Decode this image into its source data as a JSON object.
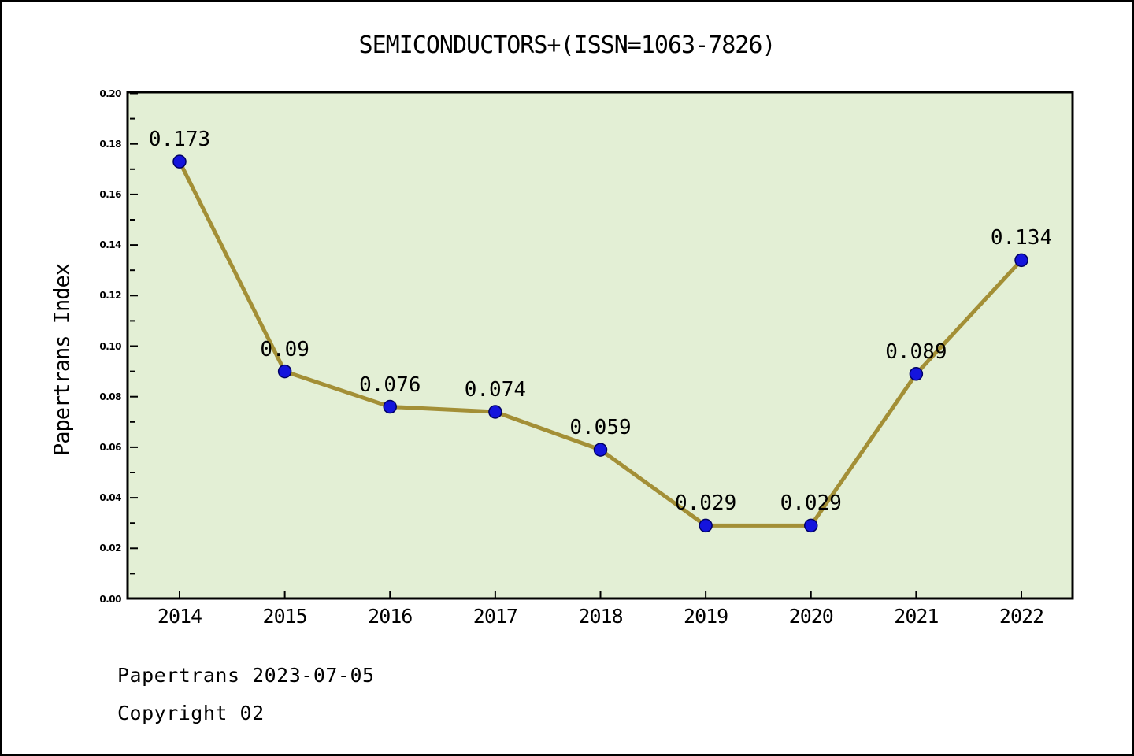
{
  "title": "SEMICONDUCTORS+(ISSN=1063-7826)",
  "y_axis_title": "Papertrans Index",
  "footer": {
    "line1": "Papertrans 2023-07-05",
    "line2": "Copyright_02"
  },
  "chart_data": {
    "type": "line",
    "title": "SEMICONDUCTORS+(ISSN=1063-7826)",
    "xlabel": "",
    "ylabel": "Papertrans Index",
    "x": [
      2014,
      2015,
      2016,
      2017,
      2018,
      2019,
      2020,
      2021,
      2022
    ],
    "values": [
      0.173,
      0.09,
      0.076,
      0.074,
      0.059,
      0.029,
      0.029,
      0.089,
      0.134
    ],
    "point_labels": [
      "0.173",
      "0.09",
      "0.076",
      "0.074",
      "0.059",
      "0.029",
      "0.029",
      "0.089",
      "0.134"
    ],
    "xtick_labels": [
      "2014",
      "2015",
      "2016",
      "2017",
      "2018",
      "2019",
      "2020",
      "2021",
      "2022"
    ],
    "ytick_labels": [
      "0.00",
      "0.02",
      "0.04",
      "0.06",
      "0.08",
      "0.10",
      "0.12",
      "0.14",
      "0.16",
      "0.18",
      "0.20"
    ],
    "ylim": [
      0.0,
      0.2
    ],
    "ytick_major_step": 0.02,
    "ytick_minor_step": 0.01,
    "grid": false,
    "legend_position": "none",
    "colors": {
      "plot_background": "#e3efd5",
      "line": "#a38f36",
      "marker_fill": "#1414dd",
      "marker_edge": "#000066",
      "axis": "#000000",
      "text": "#000000"
    }
  }
}
